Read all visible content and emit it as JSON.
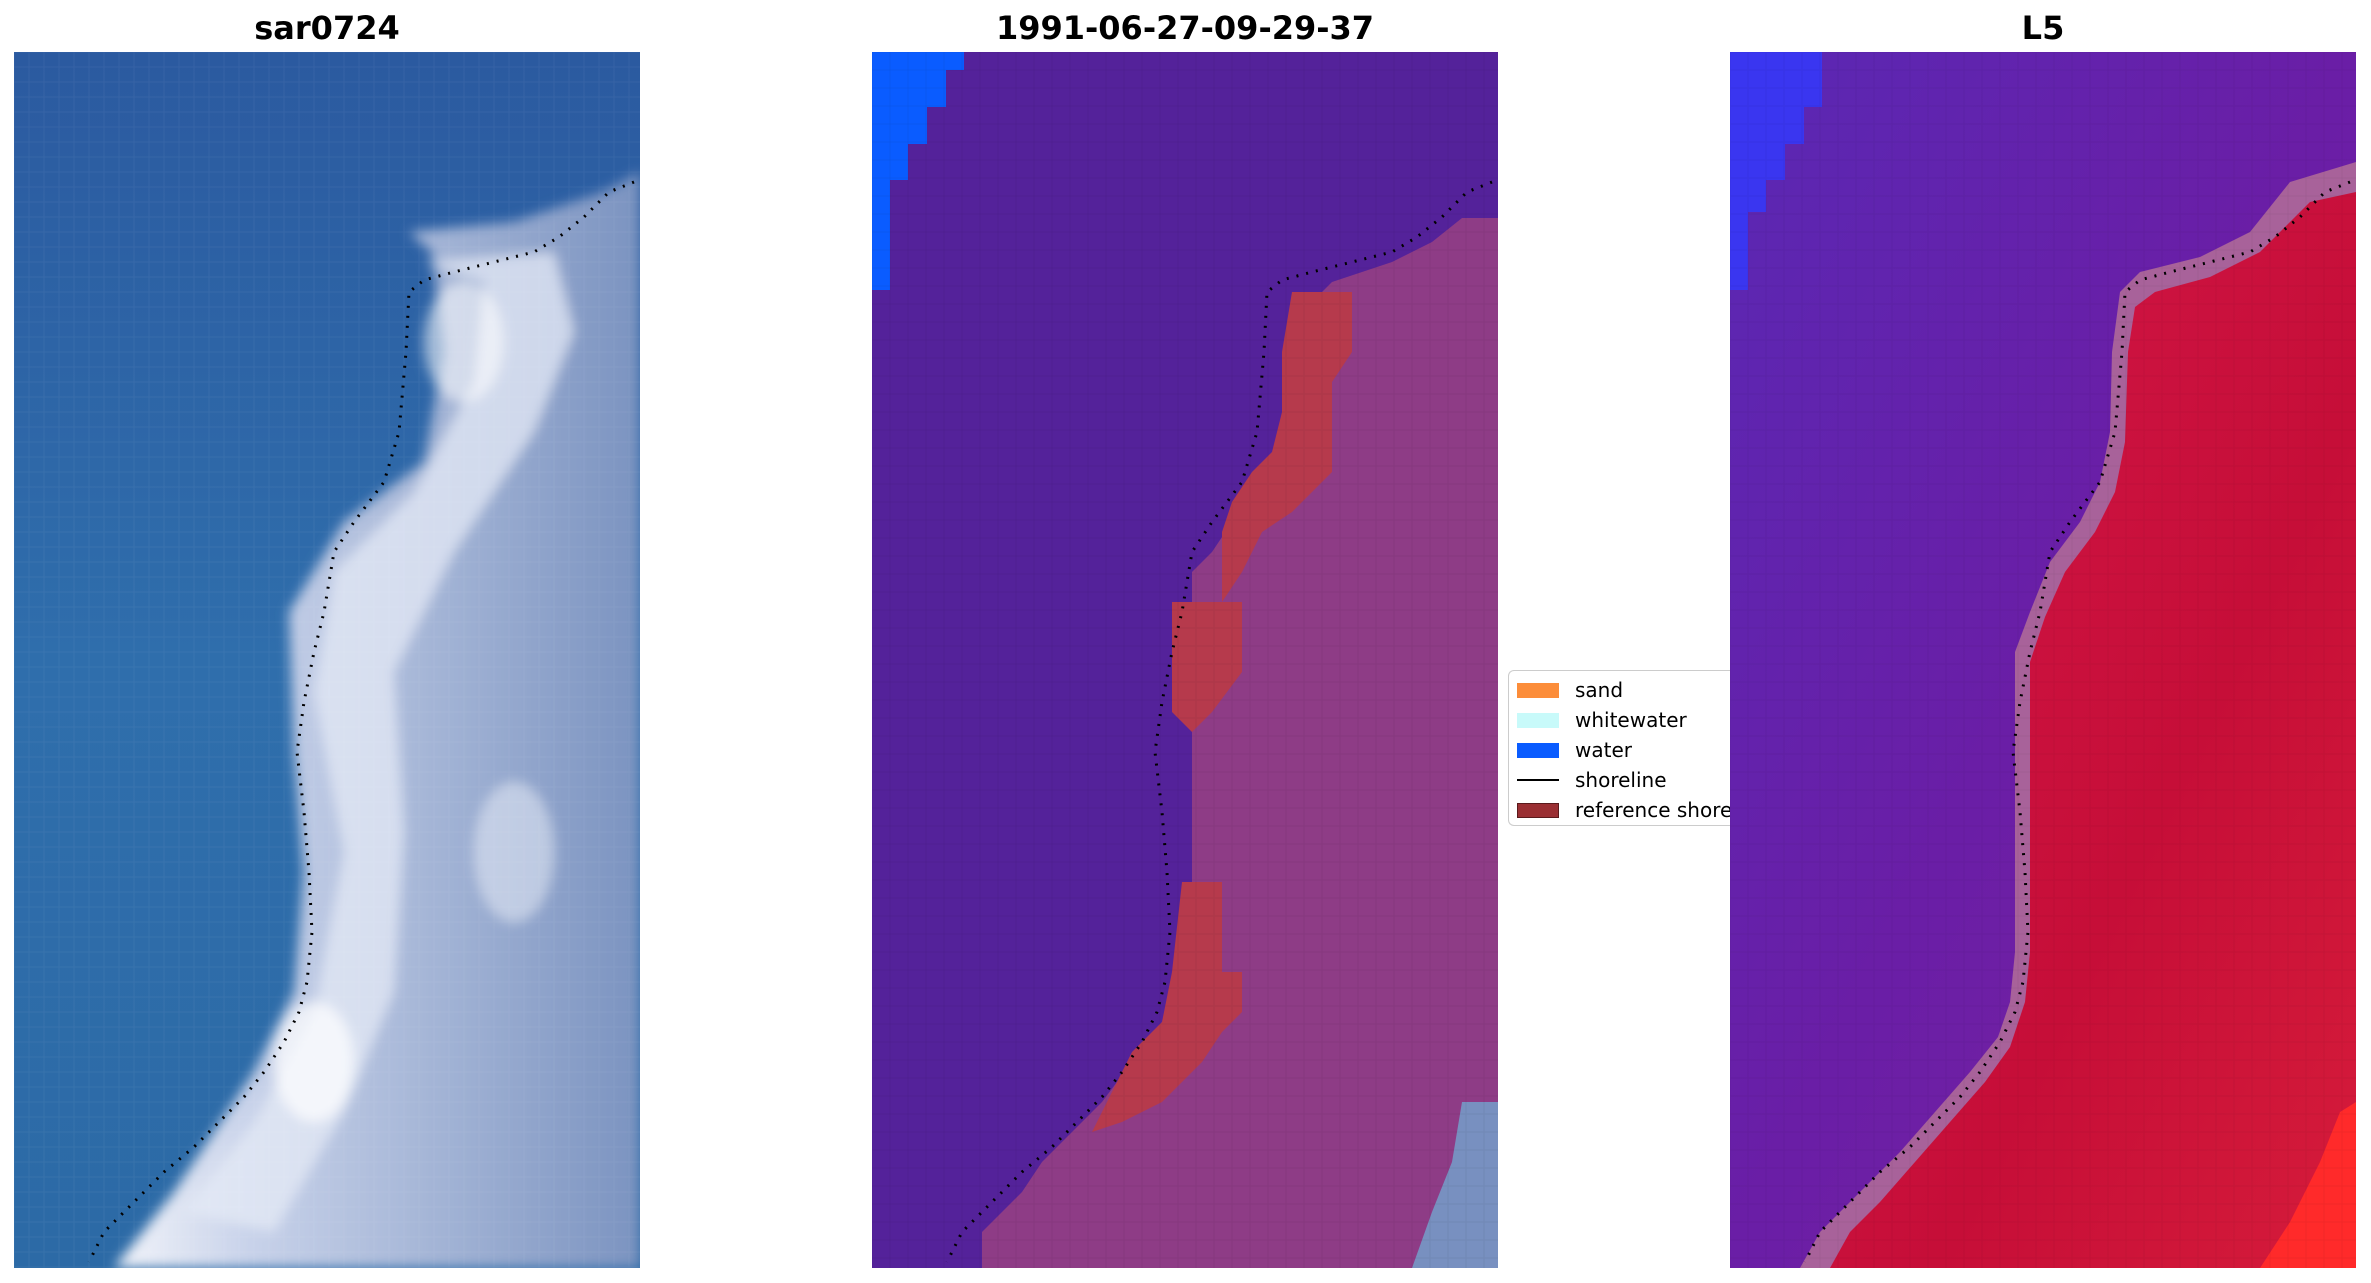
{
  "panels": [
    {
      "title": "sar0724"
    },
    {
      "title": "1991-06-27-09-29-37"
    },
    {
      "title": "L5"
    }
  ],
  "legend": {
    "items": [
      {
        "label": "sand",
        "color": "#fc8d3a",
        "kind": "patch"
      },
      {
        "label": "whitewater",
        "color": "#c8fafa",
        "kind": "patch"
      },
      {
        "label": "water",
        "color": "#0a5cff",
        "kind": "patch"
      },
      {
        "label": "shoreline",
        "color": "#000000",
        "kind": "line"
      },
      {
        "label": "reference shoreline",
        "color": "#9a2f33",
        "kind": "patch"
      }
    ]
  },
  "colors": {
    "rgb_water": "#2c68a8",
    "rgb_beach": "#dde4f2",
    "rgb_inland": "#7d96c2",
    "class_background": "#54229a",
    "class_land": "#8e3c86",
    "class_reference": "#b63a4c",
    "class_water": "#0a5cff",
    "index_water": "#6a1ea6",
    "index_land": "#c8123a",
    "index_edge": "#a8629a"
  }
}
